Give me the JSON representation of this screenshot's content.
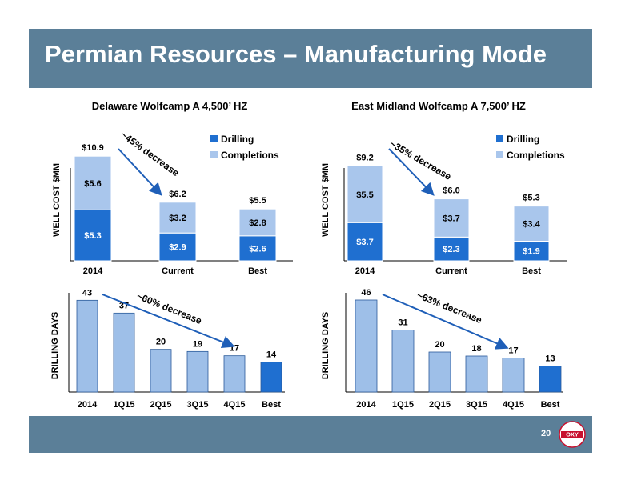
{
  "slide": {
    "title": "Permian Resources – Manufacturing Mode",
    "page_number": "20",
    "logo_text": "OXY"
  },
  "colors": {
    "title_bar": "#5b7f98",
    "drilling": "#1f6fd0",
    "completions": "#a9c6ec",
    "days_bar": "#9ebfe8",
    "best_days_bar": "#1f6fd0",
    "arrow": "#1f5fb8"
  },
  "chart_data": [
    {
      "type": "bar",
      "stacked": true,
      "title": "Delaware Wolfcamp A 4,500’ HZ",
      "ylabel": "WELL COST $MM",
      "categories": [
        "2014",
        "Current",
        "Best"
      ],
      "series": [
        {
          "name": "Drilling",
          "values": [
            5.3,
            2.9,
            2.6
          ],
          "labels": [
            "$5.3",
            "$2.9",
            "$2.6"
          ]
        },
        {
          "name": "Completions",
          "values": [
            5.6,
            3.2,
            2.8
          ],
          "labels": [
            "$5.6",
            "$3.2",
            "$2.8"
          ]
        }
      ],
      "totals": [
        "$10.9",
        "$6.2",
        "$5.5"
      ],
      "annotation": "~45% decrease",
      "legend": "top-right",
      "ylim": [
        0,
        12
      ]
    },
    {
      "type": "bar",
      "stacked": true,
      "title": "East Midland Wolfcamp A 7,500’ HZ",
      "ylabel": "WELL COST $MM",
      "categories": [
        "2014",
        "Current",
        "Best"
      ],
      "series": [
        {
          "name": "Drilling",
          "values": [
            3.7,
            2.3,
            1.9
          ],
          "labels": [
            "$3.7",
            "$2.3",
            "$1.9"
          ]
        },
        {
          "name": "Completions",
          "values": [
            5.5,
            3.7,
            3.4
          ],
          "labels": [
            "$5.5",
            "$3.7",
            "$3.4"
          ]
        }
      ],
      "totals": [
        "$9.2",
        "$6.0",
        "$5.3"
      ],
      "annotation": "~35% decrease",
      "legend": "top-right",
      "ylim": [
        0,
        12
      ]
    },
    {
      "type": "bar",
      "ylabel": "DRILLING DAYS",
      "categories": [
        "2014",
        "1Q15",
        "2Q15",
        "3Q15",
        "4Q15",
        "Best"
      ],
      "values": [
        43,
        37,
        20,
        19,
        17,
        14
      ],
      "annotation": "~60% decrease",
      "ylim": [
        0,
        45
      ]
    },
    {
      "type": "bar",
      "ylabel": "DRILLING DAYS",
      "categories": [
        "2014",
        "1Q15",
        "2Q15",
        "3Q15",
        "4Q15",
        "Best"
      ],
      "values": [
        46,
        31,
        20,
        18,
        17,
        13
      ],
      "annotation": "~63% decrease",
      "ylim": [
        0,
        48
      ]
    }
  ]
}
